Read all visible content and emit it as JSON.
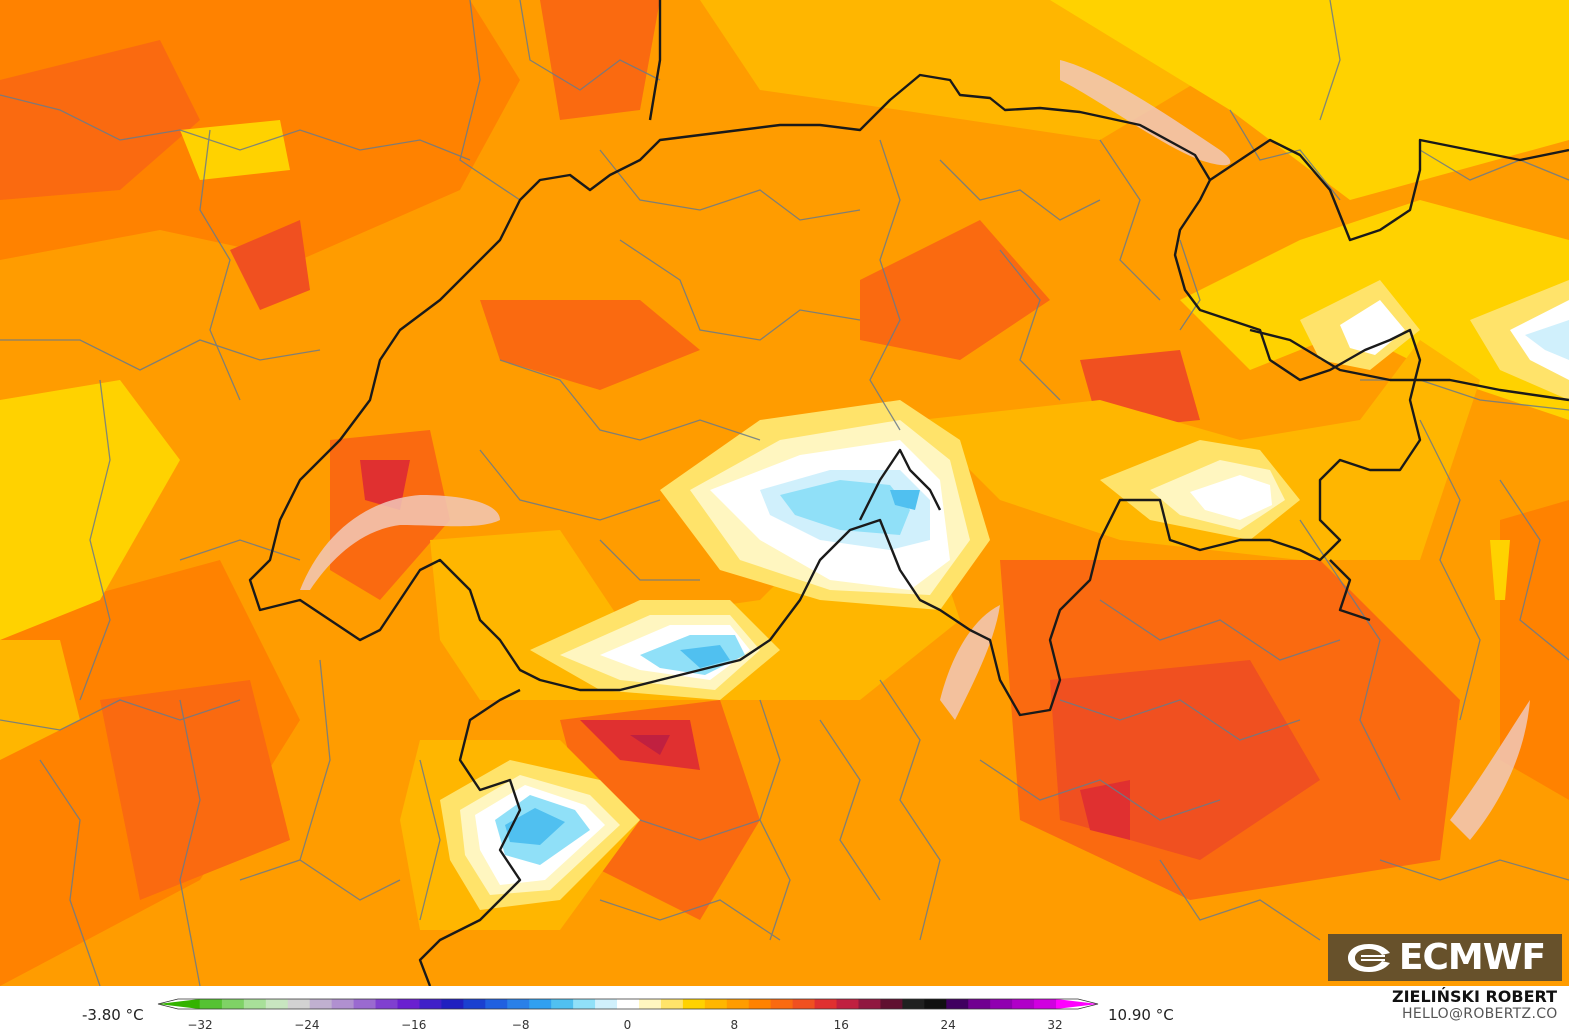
{
  "legend": {
    "min_label": "-3.80 °C",
    "max_label": "10.90 °C",
    "ticks": [
      "−32",
      "−24",
      "−16",
      "−8",
      "0",
      "8",
      "16",
      "24",
      "32"
    ],
    "range": [
      -32,
      32
    ],
    "colors": [
      "#33b300",
      "#55c233",
      "#7fd266",
      "#a8e099",
      "#c8e6c0",
      "#d2d2d2",
      "#c0b0d0",
      "#b090d0",
      "#9a6ad0",
      "#8040d0",
      "#6a20d0",
      "#4020c8",
      "#2020c0",
      "#1a40d0",
      "#2060e0",
      "#2a80e8",
      "#30a0f0",
      "#50c0f0",
      "#90e0f8",
      "#d0f0fc",
      "#ffffff",
      "#fff6c0",
      "#ffe36a",
      "#ffd200",
      "#ffb600",
      "#ff9c00",
      "#ff8200",
      "#fa6a10",
      "#f05020",
      "#e03030",
      "#c02040",
      "#901840",
      "#601030",
      "#202020",
      "#101010",
      "#400060",
      "#700090",
      "#9000b0",
      "#b000c8",
      "#d000e0",
      "#ff00ff"
    ]
  },
  "credits": {
    "name": "ZIELIŃSKI ROBERT",
    "email": "HELLO@ROBERTZ.CO"
  },
  "logo": {
    "text": "ECMWF",
    "icon": "ecmwf-logo-icon"
  }
}
